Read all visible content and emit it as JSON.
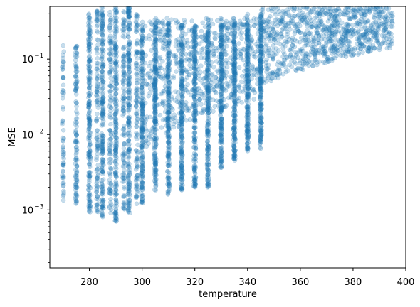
{
  "chart_data": {
    "type": "scatter",
    "title": "",
    "xlabel": "temperature",
    "ylabel": "MSE",
    "x_scale": "linear",
    "y_scale": "log",
    "xlim": [
      265,
      400
    ],
    "ylim": [
      0.00017,
      0.5
    ],
    "grid": false,
    "legend": "none",
    "marker": {
      "color": "#1f77b4",
      "alpha": 0.25,
      "shape": "circle"
    },
    "x_ticks": [
      {
        "value": 280,
        "label": "280"
      },
      {
        "value": 300,
        "label": "300"
      },
      {
        "value": 320,
        "label": "320"
      },
      {
        "value": 340,
        "label": "340"
      },
      {
        "value": 360,
        "label": "360"
      },
      {
        "value": 380,
        "label": "380"
      },
      {
        "value": 400,
        "label": "400"
      }
    ],
    "y_ticks": [
      {
        "value": 0.001,
        "base": "10",
        "exp": "−3"
      },
      {
        "value": 0.01,
        "base": "10",
        "exp": "−2"
      },
      {
        "value": 0.1,
        "base": "10",
        "exp": "−1"
      }
    ],
    "y_minor_ticks": [
      0.0002,
      0.0003,
      0.0004,
      0.0005,
      0.0006,
      0.0007,
      0.0008,
      0.0009,
      0.002,
      0.003,
      0.004,
      0.005,
      0.006,
      0.007,
      0.008,
      0.009,
      0.02,
      0.03,
      0.04,
      0.05,
      0.06,
      0.07,
      0.08,
      0.09,
      0.2,
      0.3,
      0.4
    ],
    "column_series": [
      {
        "x": 270,
        "ymin": 0.0013,
        "ymax": 0.16,
        "density": "low"
      },
      {
        "x": 275,
        "ymin": 0.0011,
        "ymax": 0.15,
        "density": "medium"
      },
      {
        "x": 280,
        "ymin": 0.0009,
        "ymax": 0.4,
        "density": "high"
      },
      {
        "x": 283,
        "ymin": 0.0009,
        "ymax": 0.45,
        "density": "medium"
      },
      {
        "x": 285,
        "ymin": 0.0008,
        "ymax": 0.5,
        "density": "high"
      },
      {
        "x": 288,
        "ymin": 0.0009,
        "ymax": 0.45,
        "density": "medium"
      },
      {
        "x": 290,
        "ymin": 0.0007,
        "ymax": 0.5,
        "density": "high"
      },
      {
        "x": 293,
        "ymin": 0.001,
        "ymax": 0.45,
        "density": "medium"
      },
      {
        "x": 295,
        "ymin": 0.0009,
        "ymax": 0.5,
        "density": "high"
      },
      {
        "x": 298,
        "ymin": 0.0012,
        "ymax": 0.4,
        "density": "medium"
      },
      {
        "x": 300,
        "ymin": 0.0012,
        "ymax": 0.3,
        "density": "high"
      },
      {
        "x": 305,
        "ymin": 0.0018,
        "ymax": 0.3,
        "density": "high"
      },
      {
        "x": 310,
        "ymin": 0.0016,
        "ymax": 0.3,
        "density": "high"
      },
      {
        "x": 315,
        "ymin": 0.0018,
        "ymax": 0.3,
        "density": "high"
      },
      {
        "x": 320,
        "ymin": 0.002,
        "ymax": 0.3,
        "density": "high"
      },
      {
        "x": 325,
        "ymin": 0.002,
        "ymax": 0.3,
        "density": "high"
      },
      {
        "x": 330,
        "ymin": 0.0035,
        "ymax": 0.35,
        "density": "high"
      },
      {
        "x": 335,
        "ymin": 0.0045,
        "ymax": 0.35,
        "density": "high"
      },
      {
        "x": 340,
        "ymin": 0.006,
        "ymax": 0.4,
        "density": "high"
      },
      {
        "x": 345,
        "ymin": 0.0065,
        "ymax": 0.4,
        "density": "high"
      }
    ],
    "scatter_regions": [
      {
        "xrange": [
          300,
          345
        ],
        "ymin": 0.005,
        "ymax": 0.35,
        "density": "high"
      },
      {
        "xrange": [
          345,
          395
        ],
        "ymin": 0.04,
        "ymax": 0.5,
        "density": "high"
      }
    ]
  }
}
